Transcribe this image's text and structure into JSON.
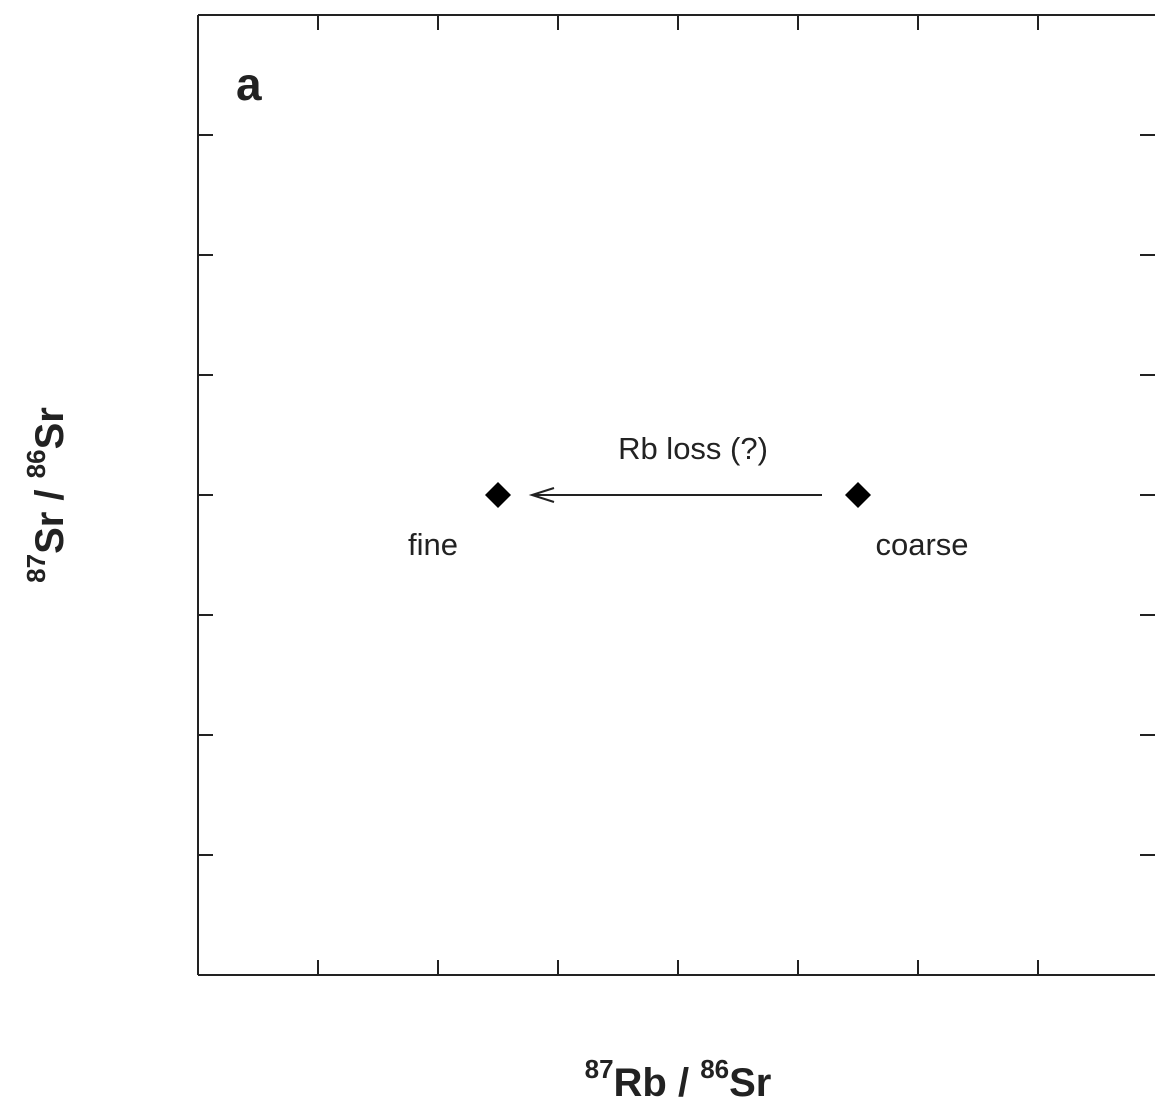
{
  "chart_data": {
    "type": "scatter",
    "panel_label": "a",
    "x_label": [
      "87",
      "Rb / ",
      "86",
      "Sr"
    ],
    "y_label": [
      "87",
      "Sr / ",
      "86",
      "Sr"
    ],
    "x": [
      2.5,
      5.5
    ],
    "values": [
      4,
      4
    ],
    "color": "#000000",
    "point_labels": [
      "fine",
      "coarse"
    ],
    "annotation": "Rb loss (?)",
    "xlim": [
      0,
      8
    ],
    "ylim": [
      0,
      8
    ],
    "xticks": [
      1,
      2,
      3,
      4,
      5,
      6,
      7
    ],
    "yticks": [
      1,
      2,
      3,
      4,
      5,
      6,
      7
    ]
  }
}
